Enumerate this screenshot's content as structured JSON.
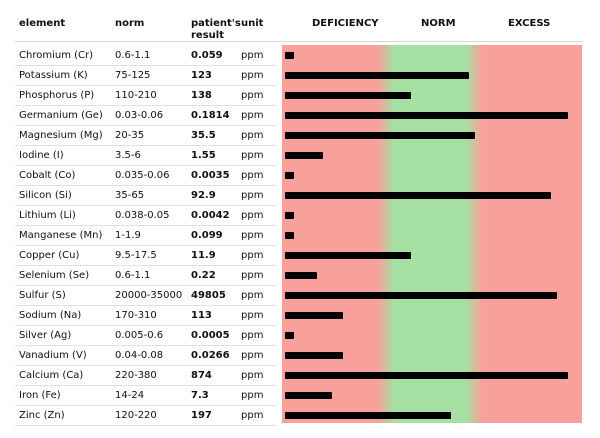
{
  "table": {
    "headers": {
      "element": "element",
      "norm": "norm",
      "result_line1": "patient's",
      "result_line2": "result",
      "unit": "unit",
      "deficiency": "DEFICIENCY",
      "norm_zone": "NORM",
      "excess": "EXCESS"
    }
  },
  "chart_data": {
    "type": "bar",
    "orientation": "horizontal",
    "zones": [
      "DEFICIENCY",
      "NORM",
      "EXCESS"
    ],
    "zone_colors": {
      "deficiency": "#f8a19b",
      "norm": "#a6e0a2",
      "excess": "#f8a19b"
    },
    "rows": [
      {
        "element": "Chromium (Cr)",
        "norm": "0.6-1.1",
        "result": "0.059",
        "unit": "ppm",
        "level": 0.03
      },
      {
        "element": "Potassium (K)",
        "norm": "75-125",
        "result": "123",
        "unit": "ppm",
        "level": 0.63
      },
      {
        "element": "Phosphorus (P)",
        "norm": "110-210",
        "result": "138",
        "unit": "ppm",
        "level": 0.43
      },
      {
        "element": "Germanium (Ge)",
        "norm": "0.03-0.06",
        "result": "0.1814",
        "unit": "ppm",
        "level": 0.97
      },
      {
        "element": "Magnesium (Mg)",
        "norm": "20-35",
        "result": "35.5",
        "unit": "ppm",
        "level": 0.65
      },
      {
        "element": "Iodine (I)",
        "norm": "3.5-6",
        "result": "1.55",
        "unit": "ppm",
        "level": 0.13
      },
      {
        "element": "Cobalt (Co)",
        "norm": "0.035-0.06",
        "result": "0.0035",
        "unit": "ppm",
        "level": 0.03
      },
      {
        "element": "Silicon (Si)",
        "norm": "35-65",
        "result": "92.9",
        "unit": "ppm",
        "level": 0.91
      },
      {
        "element": "Lithium (Li)",
        "norm": "0.038-0.05",
        "result": "0.0042",
        "unit": "ppm",
        "level": 0.03
      },
      {
        "element": "Manganese (Mn)",
        "norm": "1-1.9",
        "result": "0.099",
        "unit": "ppm",
        "level": 0.03
      },
      {
        "element": "Copper (Cu)",
        "norm": "9.5-17.5",
        "result": "11.9",
        "unit": "ppm",
        "level": 0.43
      },
      {
        "element": "Selenium (Se)",
        "norm": "0.6-1.1",
        "result": "0.22",
        "unit": "ppm",
        "level": 0.11
      },
      {
        "element": "Sulfur (S)",
        "norm": "20000-35000",
        "result": "49805",
        "unit": "ppm",
        "level": 0.93
      },
      {
        "element": "Sodium (Na)",
        "norm": "170-310",
        "result": "113",
        "unit": "ppm",
        "level": 0.2
      },
      {
        "element": "Silver (Ag)",
        "norm": "0.005-0.6",
        "result": "0.0005",
        "unit": "ppm",
        "level": 0.03
      },
      {
        "element": "Vanadium (V)",
        "norm": "0.04-0.08",
        "result": "0.0266",
        "unit": "ppm",
        "level": 0.2
      },
      {
        "element": "Calcium (Ca)",
        "norm": "220-380",
        "result": "874",
        "unit": "ppm",
        "level": 0.97
      },
      {
        "element": "Iron (Fe)",
        "norm": "14-24",
        "result": "7.3",
        "unit": "ppm",
        "level": 0.16
      },
      {
        "element": "Zinc (Zn)",
        "norm": "120-220",
        "result": "197",
        "unit": "ppm",
        "level": 0.57
      }
    ]
  }
}
